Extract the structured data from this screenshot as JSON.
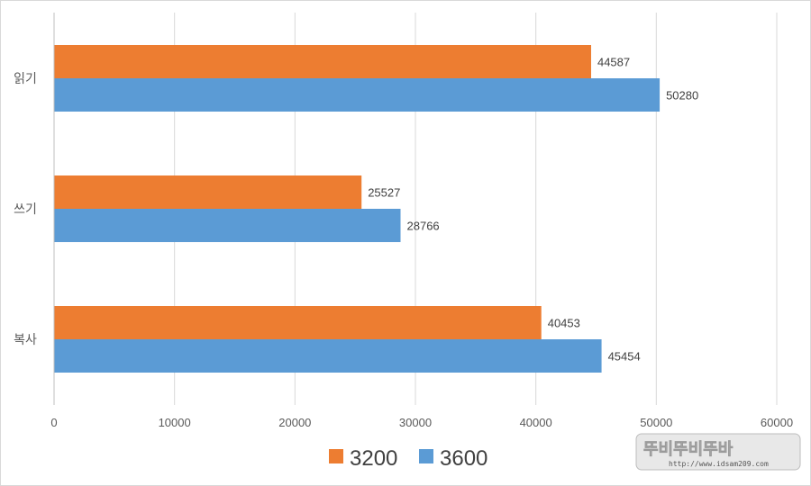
{
  "chart_data": {
    "type": "bar",
    "orientation": "horizontal",
    "categories": [
      "읽기",
      "쓰기",
      "복사"
    ],
    "series": [
      {
        "name": "3200",
        "values": [
          44587,
          25527,
          40453
        ],
        "color": "#ED7D31"
      },
      {
        "name": "3600",
        "values": [
          50280,
          28766,
          45454
        ],
        "color": "#5B9BD5"
      }
    ],
    "xlim": [
      0,
      60000
    ],
    "x_ticks": [
      "0",
      "10000",
      "20000",
      "30000",
      "40000",
      "50000",
      "60000"
    ],
    "grid": true,
    "legend_position": "bottom",
    "data_labels": true
  },
  "watermark": {
    "text": "http://www.idsam209.com"
  }
}
